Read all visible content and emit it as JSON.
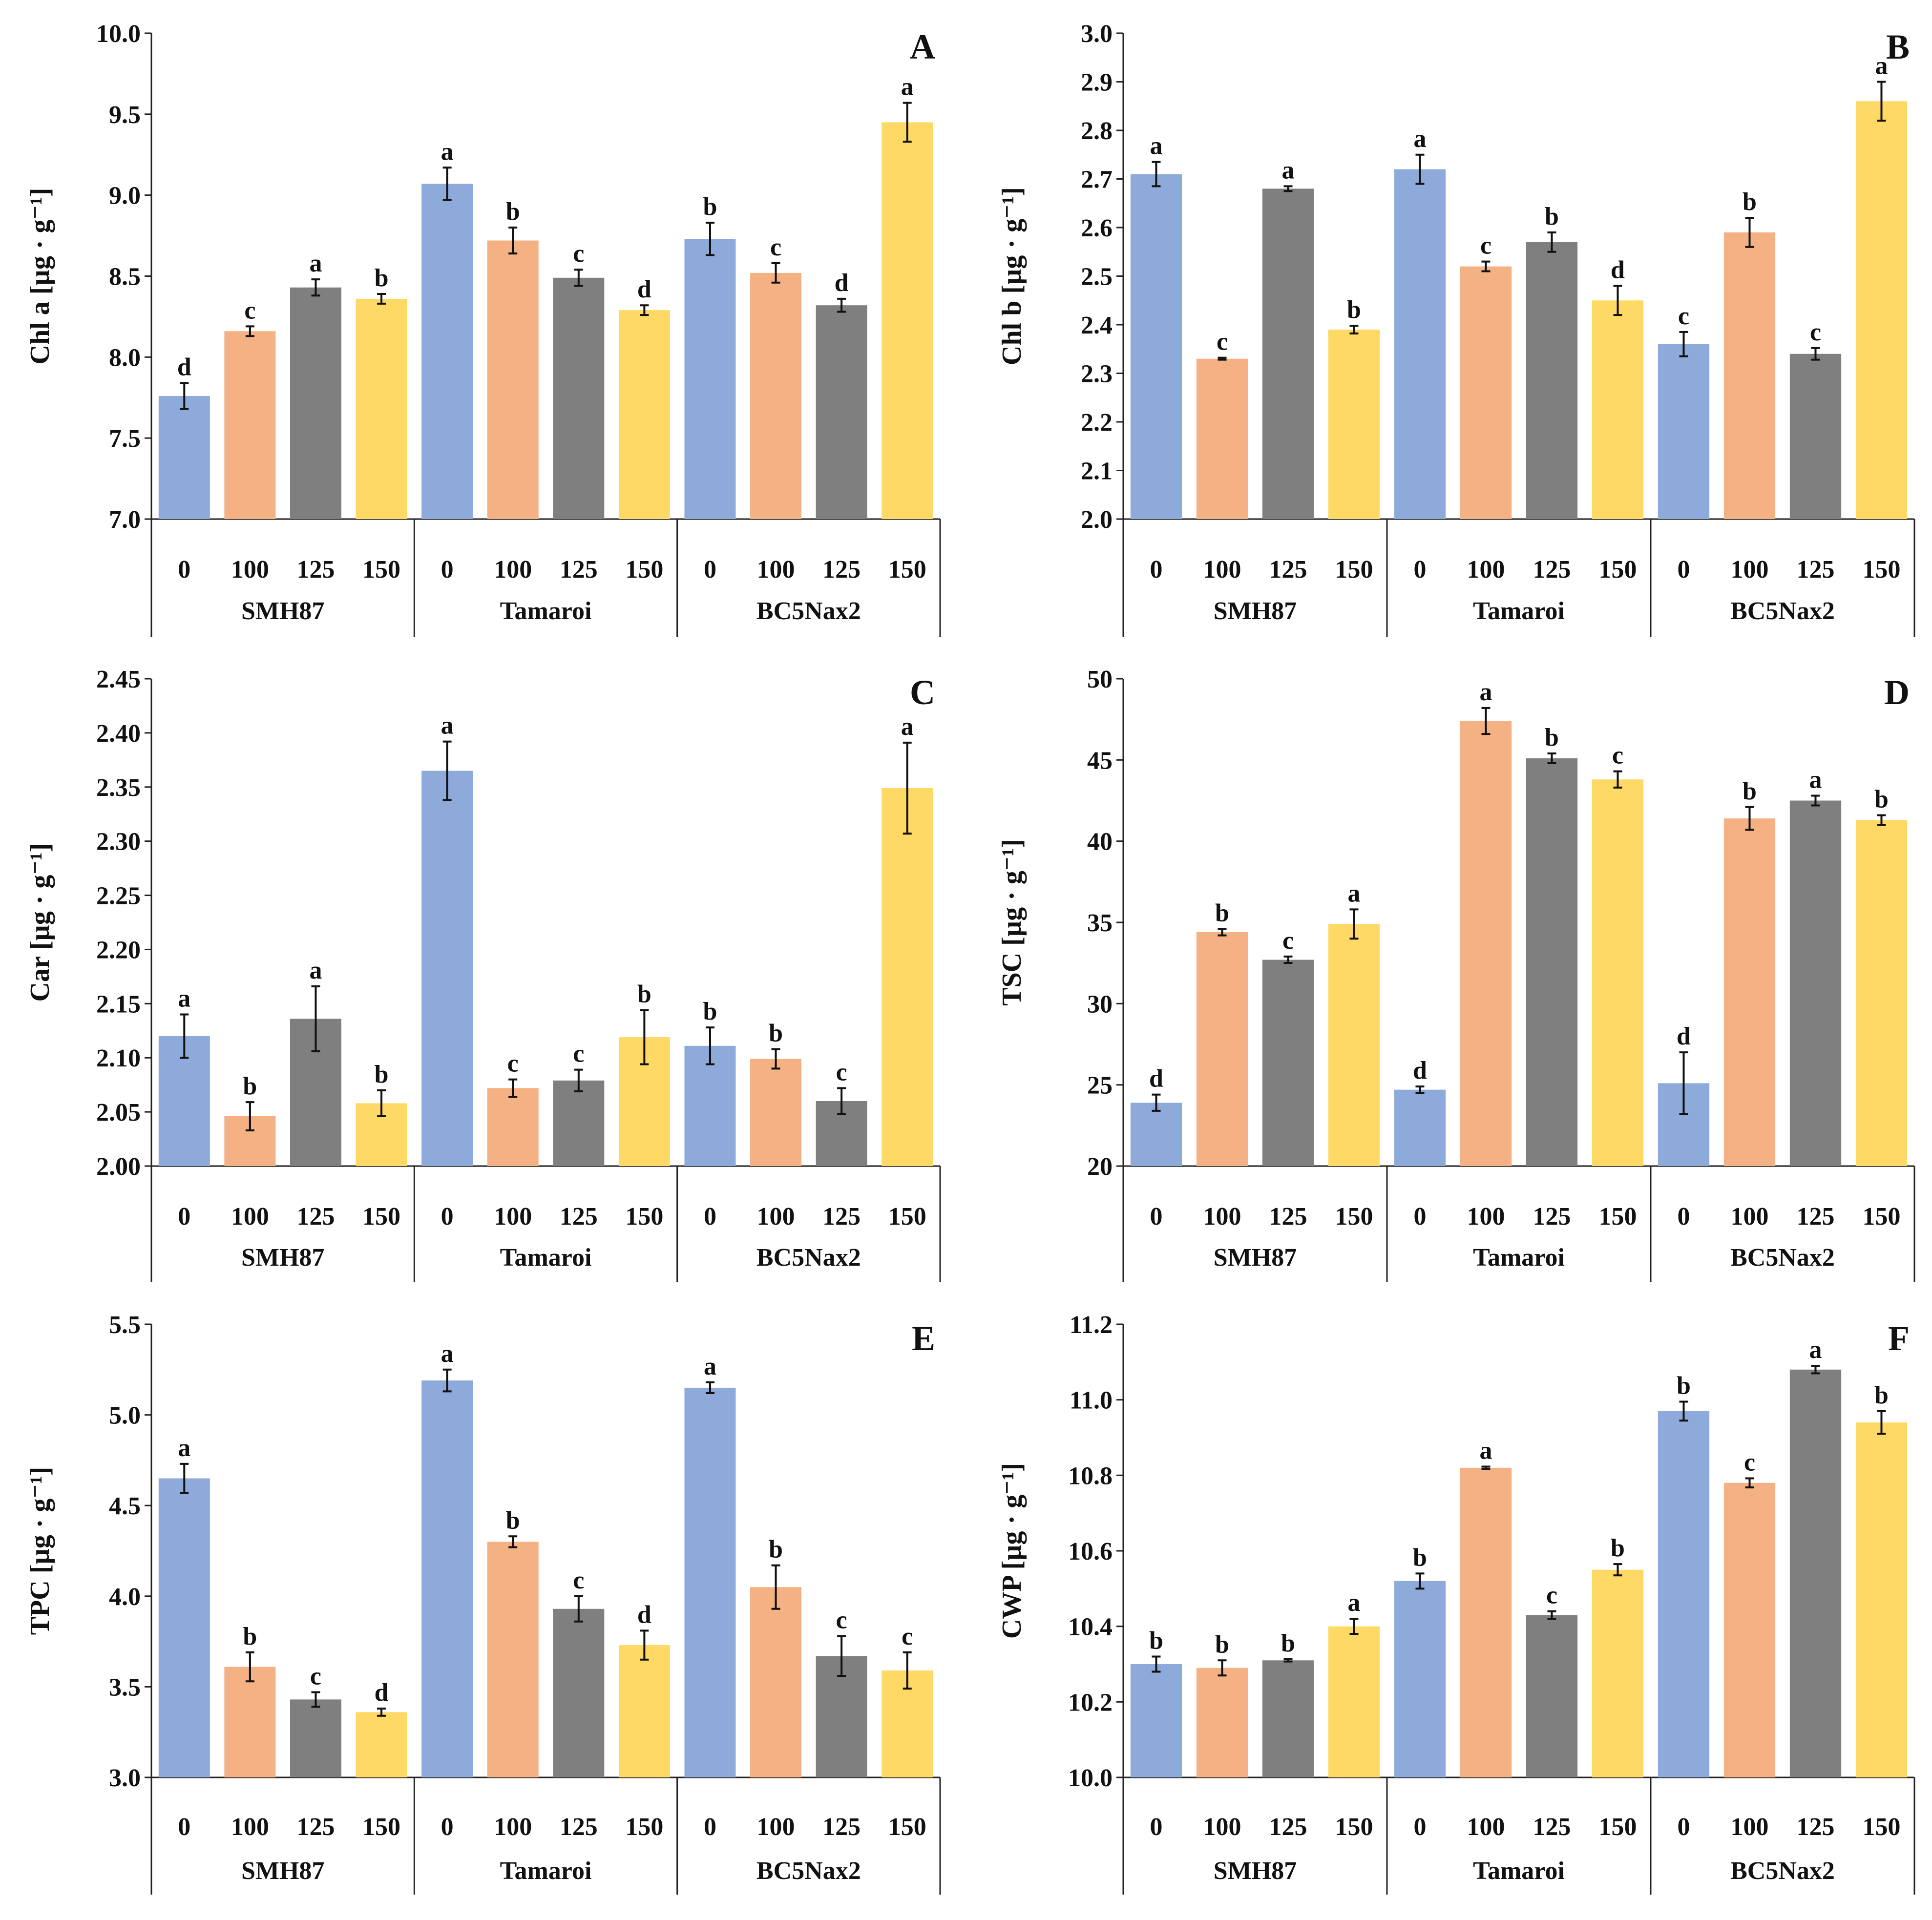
{
  "colors": [
    "#8eaadb",
    "#f4b183",
    "#7f7f7f",
    "#ffd966"
  ],
  "chart_data": [
    {
      "type": "bar",
      "panel": "A",
      "ylabel": "Chl a [µg · g⁻¹]",
      "ylim": [
        7.0,
        10.0
      ],
      "yticks": [
        "7.0",
        "7.5",
        "8.0",
        "8.5",
        "9.0",
        "9.5",
        "10.0"
      ],
      "categories": [
        "0",
        "100",
        "125",
        "150"
      ],
      "groups": [
        {
          "name": "SMH87",
          "values": [
            7.76,
            8.16,
            8.43,
            8.36
          ],
          "errors": [
            0.08,
            0.03,
            0.05,
            0.03
          ],
          "letters": [
            "d",
            "c",
            "a",
            "b"
          ]
        },
        {
          "name": "Tamaroi",
          "values": [
            9.07,
            8.72,
            8.49,
            8.29
          ],
          "errors": [
            0.1,
            0.08,
            0.05,
            0.03
          ],
          "letters": [
            "a",
            "b",
            "c",
            "d"
          ]
        },
        {
          "name": "BC5Nax2",
          "values": [
            8.73,
            8.52,
            8.32,
            9.45
          ],
          "errors": [
            0.1,
            0.06,
            0.04,
            0.12
          ],
          "letters": [
            "b",
            "c",
            "d",
            "a"
          ]
        }
      ]
    },
    {
      "type": "bar",
      "panel": "B",
      "ylabel": "Chl b [µg · g⁻¹]",
      "ylim": [
        2.0,
        3.0
      ],
      "yticks": [
        "2.0",
        "2.1",
        "2.2",
        "2.3",
        "2.4",
        "2.5",
        "2.6",
        "2.7",
        "2.8",
        "2.9",
        "3.0"
      ],
      "categories": [
        "0",
        "100",
        "125",
        "150"
      ],
      "groups": [
        {
          "name": "SMH87",
          "values": [
            2.71,
            2.33,
            2.68,
            2.39
          ],
          "errors": [
            0.025,
            0.002,
            0.005,
            0.008
          ],
          "letters": [
            "a",
            "c",
            "a",
            "b"
          ]
        },
        {
          "name": "Tamaroi",
          "values": [
            2.72,
            2.52,
            2.57,
            2.45
          ],
          "errors": [
            0.03,
            0.01,
            0.02,
            0.03
          ],
          "letters": [
            "a",
            "c",
            "b",
            "d"
          ]
        },
        {
          "name": "BC5Nax2",
          "values": [
            2.36,
            2.59,
            2.34,
            2.86
          ],
          "errors": [
            0.025,
            0.03,
            0.012,
            0.04
          ],
          "letters": [
            "c",
            "b",
            "c",
            "a"
          ]
        }
      ]
    },
    {
      "type": "bar",
      "panel": "C",
      "ylabel": "Car [µg · g⁻¹]",
      "ylim": [
        2.0,
        2.45
      ],
      "yticks": [
        "2.00",
        "2.05",
        "2.10",
        "2.15",
        "2.20",
        "2.25",
        "2.30",
        "2.35",
        "2.40",
        "2.45"
      ],
      "categories": [
        "0",
        "100",
        "125",
        "150"
      ],
      "groups": [
        {
          "name": "SMH87",
          "values": [
            2.12,
            2.046,
            2.136,
            2.058
          ],
          "errors": [
            0.02,
            0.013,
            0.03,
            0.012
          ],
          "letters": [
            "a",
            "b",
            "a",
            "b"
          ]
        },
        {
          "name": "Tamaroi",
          "values": [
            2.365,
            2.072,
            2.079,
            2.119
          ],
          "errors": [
            0.027,
            0.008,
            0.01,
            0.025
          ],
          "letters": [
            "a",
            "c",
            "c",
            "b"
          ]
        },
        {
          "name": "BC5Nax2",
          "values": [
            2.111,
            2.099,
            2.06,
            2.349
          ],
          "errors": [
            0.017,
            0.009,
            0.012,
            0.042
          ],
          "letters": [
            "b",
            "b",
            "c",
            "a"
          ]
        }
      ]
    },
    {
      "type": "bar",
      "panel": "D",
      "ylabel": "TSC [µg · g⁻¹]",
      "ylim": [
        20,
        50
      ],
      "yticks": [
        "20",
        "25",
        "30",
        "35",
        "40",
        "45",
        "50"
      ],
      "categories": [
        "0",
        "100",
        "125",
        "150"
      ],
      "groups": [
        {
          "name": "SMH87",
          "values": [
            23.9,
            34.4,
            32.7,
            34.9
          ],
          "errors": [
            0.5,
            0.2,
            0.2,
            0.9
          ],
          "letters": [
            "d",
            "b",
            "c",
            "a"
          ]
        },
        {
          "name": "Tamaroi",
          "values": [
            24.7,
            47.4,
            45.1,
            43.8
          ],
          "errors": [
            0.2,
            0.8,
            0.3,
            0.5
          ],
          "letters": [
            "d",
            "a",
            "b",
            "c"
          ]
        },
        {
          "name": "BC5Nax2",
          "values": [
            25.1,
            41.4,
            42.5,
            41.3
          ],
          "errors": [
            1.9,
            0.7,
            0.3,
            0.3
          ],
          "letters": [
            "d",
            "b",
            "a",
            "b"
          ]
        }
      ]
    },
    {
      "type": "bar",
      "panel": "E",
      "ylabel": "TPC [µg · g⁻¹]",
      "ylim": [
        3.0,
        5.5
      ],
      "yticks": [
        "3.0",
        "3.5",
        "4.0",
        "4.5",
        "5.0",
        "5.5"
      ],
      "categories": [
        "0",
        "100",
        "125",
        "150"
      ],
      "groups": [
        {
          "name": "SMH87",
          "values": [
            4.65,
            3.61,
            3.43,
            3.36
          ],
          "errors": [
            0.08,
            0.08,
            0.04,
            0.02
          ],
          "letters": [
            "a",
            "b",
            "c",
            "d"
          ]
        },
        {
          "name": "Tamaroi",
          "values": [
            5.19,
            4.3,
            3.93,
            3.73
          ],
          "errors": [
            0.06,
            0.03,
            0.07,
            0.08
          ],
          "letters": [
            "a",
            "b",
            "c",
            "d"
          ]
        },
        {
          "name": "BC5Nax2",
          "values": [
            5.15,
            4.05,
            3.67,
            3.59
          ],
          "errors": [
            0.03,
            0.12,
            0.11,
            0.1
          ],
          "letters": [
            "a",
            "b",
            "c",
            "c"
          ]
        }
      ]
    },
    {
      "type": "bar",
      "panel": "F",
      "ylabel": "CWP [µg · g⁻¹]",
      "ylim": [
        10.0,
        11.2
      ],
      "yticks": [
        "10.0",
        "10.2",
        "10.4",
        "10.6",
        "10.8",
        "11.0",
        "11.2"
      ],
      "categories": [
        "0",
        "100",
        "125",
        "150"
      ],
      "groups": [
        {
          "name": "SMH87",
          "values": [
            10.3,
            10.29,
            10.31,
            10.4
          ],
          "errors": [
            0.02,
            0.02,
            0.003,
            0.02
          ],
          "letters": [
            "b",
            "b",
            "b",
            "a"
          ]
        },
        {
          "name": "Tamaroi",
          "values": [
            10.52,
            10.82,
            10.43,
            10.55
          ],
          "errors": [
            0.02,
            0.003,
            0.01,
            0.015
          ],
          "letters": [
            "b",
            "a",
            "c",
            "b"
          ]
        },
        {
          "name": "BC5Nax2",
          "values": [
            10.97,
            10.78,
            11.08,
            10.94
          ],
          "errors": [
            0.025,
            0.012,
            0.01,
            0.03
          ],
          "letters": [
            "b",
            "c",
            "a",
            "b"
          ]
        }
      ]
    }
  ]
}
